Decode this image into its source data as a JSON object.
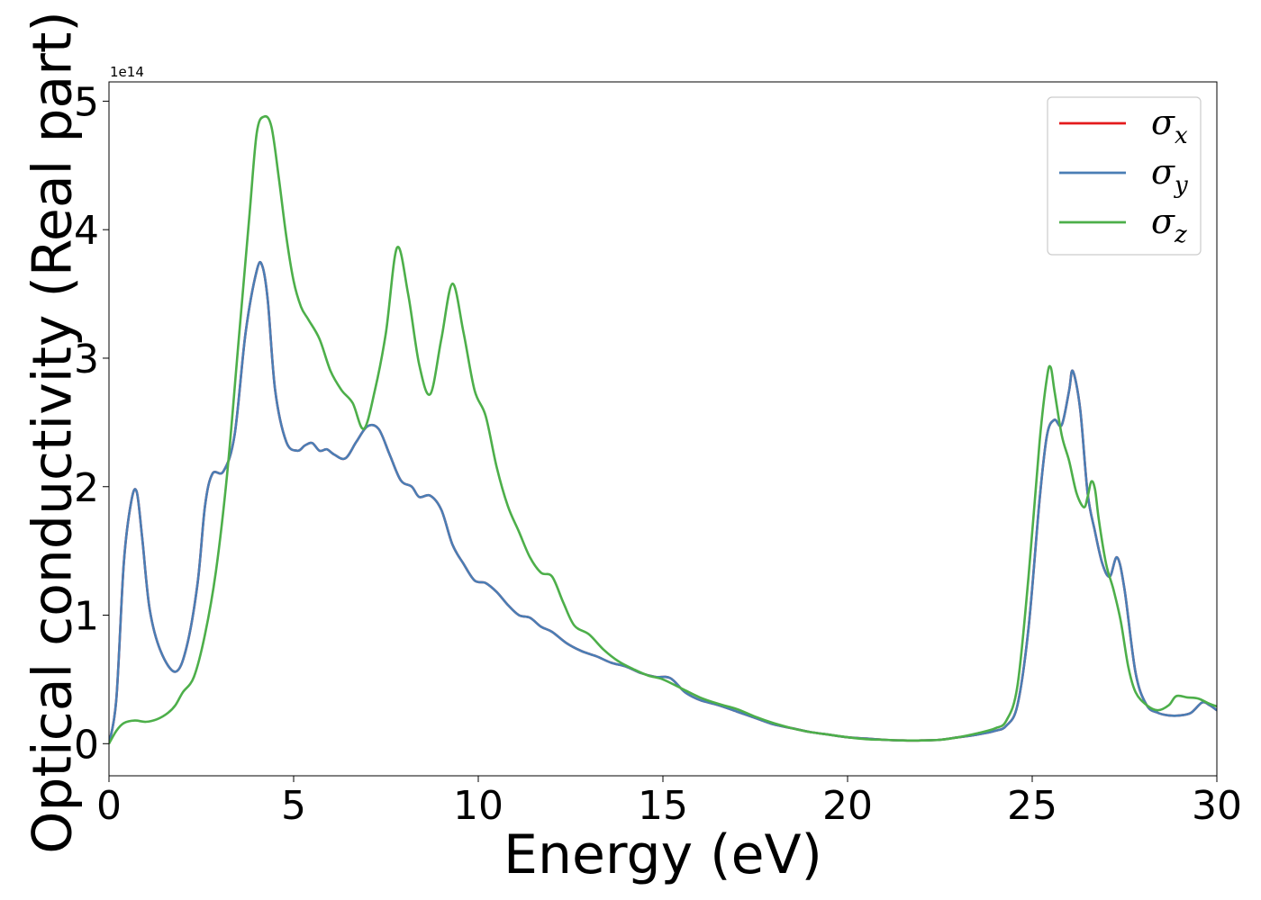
{
  "chart_data": {
    "type": "line",
    "xlabel": "Energy (eV)",
    "ylabel": "Optical conductivity (Real part)",
    "y_offset_label": "1e14",
    "xlim": [
      0,
      30
    ],
    "ylim": [
      -0.25,
      5.15
    ],
    "x_ticks": [
      "0",
      "5",
      "10",
      "15",
      "20",
      "25",
      "30"
    ],
    "x_tick_values": [
      0,
      5,
      10,
      15,
      20,
      25,
      30
    ],
    "y_ticks": [
      "0",
      "1",
      "2",
      "3",
      "4",
      "5"
    ],
    "y_tick_values": [
      0,
      1,
      2,
      3,
      4,
      5
    ],
    "grid": false,
    "legend_position": "top-right",
    "series": [
      {
        "name": "σ_x",
        "legend_main": "σ",
        "legend_sub": "x",
        "color": "#e41a1c",
        "x": [
          0,
          0.2,
          0.4,
          0.6,
          0.75,
          0.9,
          1.1,
          1.4,
          1.8,
          2.1,
          2.4,
          2.6,
          2.8,
          3.1,
          3.4,
          3.7,
          4.0,
          4.15,
          4.3,
          4.5,
          4.8,
          5.1,
          5.3,
          5.5,
          5.7,
          5.9,
          6.1,
          6.4,
          6.7,
          7.0,
          7.3,
          7.6,
          7.9,
          8.2,
          8.4,
          8.7,
          9.0,
          9.3,
          9.6,
          9.9,
          10.2,
          10.5,
          10.8,
          11.1,
          11.4,
          11.7,
          12.0,
          12.4,
          12.8,
          13.2,
          13.6,
          14.0,
          14.4,
          14.8,
          15.2,
          15.6,
          16.0,
          16.5,
          17.0,
          17.5,
          18.0,
          18.5,
          19.0,
          19.5,
          20.0,
          20.5,
          21.0,
          21.5,
          22.0,
          22.5,
          23.0,
          23.5,
          24.0,
          24.3,
          24.6,
          24.9,
          25.2,
          25.4,
          25.6,
          25.8,
          26.0,
          26.1,
          26.3,
          26.5,
          26.7,
          26.9,
          27.1,
          27.3,
          27.5,
          27.8,
          28.1,
          28.4,
          28.7,
          29.0,
          29.3,
          29.6,
          29.8,
          30.0
        ],
        "values": [
          0.0,
          0.35,
          1.4,
          1.88,
          1.96,
          1.6,
          1.05,
          0.72,
          0.56,
          0.75,
          1.25,
          1.85,
          2.1,
          2.12,
          2.4,
          3.2,
          3.68,
          3.72,
          3.45,
          2.75,
          2.35,
          2.28,
          2.32,
          2.34,
          2.28,
          2.29,
          2.25,
          2.22,
          2.35,
          2.47,
          2.45,
          2.25,
          2.05,
          2.0,
          1.92,
          1.93,
          1.82,
          1.55,
          1.4,
          1.27,
          1.25,
          1.18,
          1.08,
          1.0,
          0.98,
          0.91,
          0.87,
          0.78,
          0.72,
          0.68,
          0.63,
          0.6,
          0.55,
          0.52,
          0.51,
          0.4,
          0.34,
          0.3,
          0.25,
          0.2,
          0.15,
          0.12,
          0.09,
          0.07,
          0.05,
          0.04,
          0.03,
          0.025,
          0.025,
          0.03,
          0.05,
          0.07,
          0.1,
          0.14,
          0.3,
          0.9,
          1.9,
          2.4,
          2.52,
          2.48,
          2.75,
          2.9,
          2.6,
          1.95,
          1.65,
          1.4,
          1.3,
          1.45,
          1.2,
          0.55,
          0.3,
          0.24,
          0.22,
          0.22,
          0.24,
          0.32,
          0.3,
          0.26
        ]
      },
      {
        "name": "σ_y",
        "legend_main": "σ",
        "legend_sub": "y",
        "color": "#4a7eb5",
        "x": [
          0,
          0.2,
          0.4,
          0.6,
          0.75,
          0.9,
          1.1,
          1.4,
          1.8,
          2.1,
          2.4,
          2.6,
          2.8,
          3.1,
          3.4,
          3.7,
          4.0,
          4.15,
          4.3,
          4.5,
          4.8,
          5.1,
          5.3,
          5.5,
          5.7,
          5.9,
          6.1,
          6.4,
          6.7,
          7.0,
          7.3,
          7.6,
          7.9,
          8.2,
          8.4,
          8.7,
          9.0,
          9.3,
          9.6,
          9.9,
          10.2,
          10.5,
          10.8,
          11.1,
          11.4,
          11.7,
          12.0,
          12.4,
          12.8,
          13.2,
          13.6,
          14.0,
          14.4,
          14.8,
          15.2,
          15.6,
          16.0,
          16.5,
          17.0,
          17.5,
          18.0,
          18.5,
          19.0,
          19.5,
          20.0,
          20.5,
          21.0,
          21.5,
          22.0,
          22.5,
          23.0,
          23.5,
          24.0,
          24.3,
          24.6,
          24.9,
          25.2,
          25.4,
          25.6,
          25.8,
          26.0,
          26.1,
          26.3,
          26.5,
          26.7,
          26.9,
          27.1,
          27.3,
          27.5,
          27.8,
          28.1,
          28.4,
          28.7,
          29.0,
          29.3,
          29.6,
          29.8,
          30.0
        ],
        "values": [
          0.0,
          0.35,
          1.4,
          1.88,
          1.96,
          1.6,
          1.05,
          0.72,
          0.56,
          0.75,
          1.25,
          1.85,
          2.1,
          2.12,
          2.4,
          3.2,
          3.68,
          3.72,
          3.45,
          2.75,
          2.35,
          2.28,
          2.32,
          2.34,
          2.28,
          2.29,
          2.25,
          2.22,
          2.35,
          2.47,
          2.45,
          2.25,
          2.05,
          2.0,
          1.92,
          1.93,
          1.82,
          1.55,
          1.4,
          1.27,
          1.25,
          1.18,
          1.08,
          1.0,
          0.98,
          0.91,
          0.87,
          0.78,
          0.72,
          0.68,
          0.63,
          0.6,
          0.55,
          0.52,
          0.51,
          0.4,
          0.34,
          0.3,
          0.25,
          0.2,
          0.15,
          0.12,
          0.09,
          0.07,
          0.05,
          0.04,
          0.03,
          0.025,
          0.025,
          0.03,
          0.05,
          0.07,
          0.1,
          0.14,
          0.3,
          0.9,
          1.9,
          2.4,
          2.52,
          2.48,
          2.75,
          2.9,
          2.6,
          1.95,
          1.65,
          1.4,
          1.3,
          1.45,
          1.2,
          0.55,
          0.3,
          0.24,
          0.22,
          0.22,
          0.24,
          0.32,
          0.3,
          0.26
        ]
      },
      {
        "name": "σ_z",
        "legend_main": "σ",
        "legend_sub": "z",
        "color": "#4daf4a",
        "x": [
          0,
          0.2,
          0.4,
          0.7,
          1.0,
          1.3,
          1.6,
          1.8,
          2.0,
          2.3,
          2.6,
          2.9,
          3.2,
          3.5,
          3.8,
          4.0,
          4.2,
          4.4,
          4.6,
          4.8,
          5.0,
          5.2,
          5.4,
          5.7,
          6.0,
          6.3,
          6.6,
          6.9,
          7.2,
          7.5,
          7.8,
          8.1,
          8.4,
          8.7,
          9.0,
          9.3,
          9.6,
          9.9,
          10.2,
          10.5,
          10.8,
          11.1,
          11.4,
          11.7,
          12.0,
          12.3,
          12.6,
          13.0,
          13.4,
          13.8,
          14.2,
          14.6,
          15.0,
          15.5,
          16.0,
          16.5,
          17.0,
          17.5,
          18.0,
          18.5,
          19.0,
          19.5,
          20.0,
          20.5,
          21.0,
          21.5,
          22.0,
          22.5,
          23.0,
          23.5,
          24.0,
          24.3,
          24.6,
          24.9,
          25.2,
          25.4,
          25.5,
          25.6,
          25.8,
          26.0,
          26.2,
          26.4,
          26.5,
          26.6,
          26.7,
          26.8,
          27.0,
          27.2,
          27.4,
          27.6,
          27.8,
          28.1,
          28.4,
          28.7,
          28.9,
          29.2,
          29.5,
          29.8,
          30.0
        ],
        "values": [
          0.0,
          0.1,
          0.16,
          0.18,
          0.17,
          0.19,
          0.24,
          0.3,
          0.4,
          0.52,
          0.85,
          1.35,
          2.1,
          3.1,
          4.1,
          4.75,
          4.88,
          4.8,
          4.4,
          3.95,
          3.6,
          3.4,
          3.3,
          3.15,
          2.9,
          2.75,
          2.65,
          2.45,
          2.75,
          3.2,
          3.86,
          3.5,
          2.95,
          2.72,
          3.15,
          3.58,
          3.2,
          2.75,
          2.55,
          2.15,
          1.85,
          1.65,
          1.45,
          1.33,
          1.3,
          1.1,
          0.92,
          0.85,
          0.73,
          0.64,
          0.58,
          0.53,
          0.5,
          0.43,
          0.36,
          0.31,
          0.27,
          0.21,
          0.16,
          0.12,
          0.09,
          0.07,
          0.05,
          0.035,
          0.03,
          0.025,
          0.025,
          0.03,
          0.05,
          0.08,
          0.12,
          0.18,
          0.45,
          1.3,
          2.35,
          2.85,
          2.93,
          2.75,
          2.4,
          2.2,
          1.95,
          1.84,
          1.92,
          2.04,
          1.98,
          1.75,
          1.4,
          1.2,
          0.95,
          0.6,
          0.4,
          0.3,
          0.26,
          0.3,
          0.37,
          0.36,
          0.35,
          0.31,
          0.29
        ]
      }
    ]
  }
}
